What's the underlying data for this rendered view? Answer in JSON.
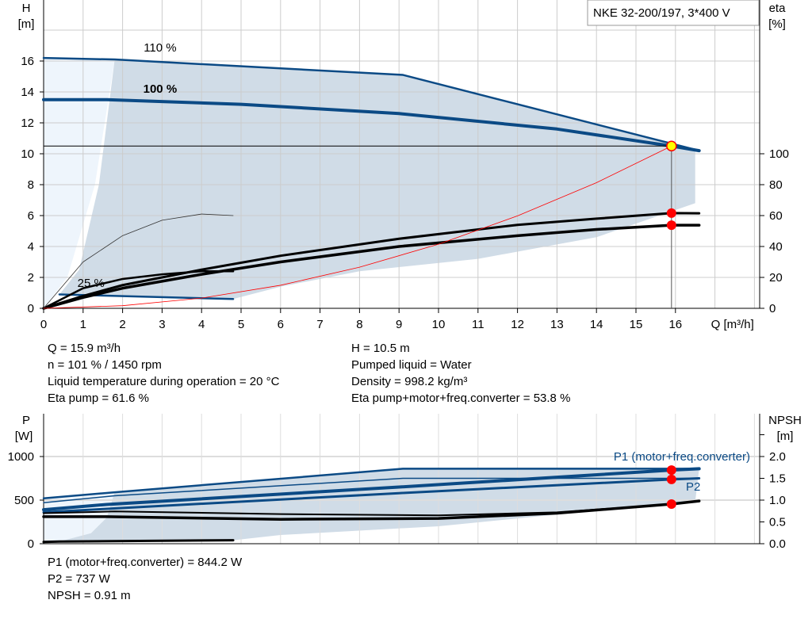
{
  "title": "NKE 32-200/197, 3*400 V",
  "colors": {
    "shade": "#d0dce7",
    "shade_light": "#eef5fc",
    "blue": "#0b4a85",
    "red": "#ff0000",
    "point": "#ffff00"
  },
  "chart_data": [
    {
      "type": "line",
      "title": "NKE 32-200/197, 3*400 V",
      "xlabel": "Q [m³/h]",
      "ylabel": "H\n[m]",
      "ylabel_parts": [
        "H",
        "[m]"
      ],
      "y2label_parts": [
        "eta",
        "[%]"
      ],
      "xlim": [
        0,
        18.1
      ],
      "ylim": [
        0,
        20
      ],
      "y2lim": [
        0,
        200
      ],
      "xticks": [
        0,
        1,
        2,
        3,
        4,
        5,
        6,
        7,
        8,
        9,
        10,
        11,
        12,
        13,
        14,
        15,
        16
      ],
      "yticks": [
        0,
        2,
        4,
        6,
        8,
        10,
        12,
        14,
        16
      ],
      "y2ticks": [
        0,
        20,
        40,
        60,
        80,
        100
      ],
      "grid": true,
      "annotations": [
        "110 %",
        "100 %",
        "25 %"
      ],
      "series": [
        {
          "name": "110 %",
          "axis": "H",
          "x": [
            0,
            1.8,
            9.1,
            16.6
          ],
          "y": [
            16.2,
            16.1,
            15.1,
            10.2
          ]
        },
        {
          "name": "100 %",
          "axis": "H",
          "x": [
            0,
            1.6,
            5,
            9,
            13,
            15.9,
            16.6
          ],
          "y": [
            13.5,
            13.5,
            13.2,
            12.6,
            11.6,
            10.5,
            10.2
          ]
        },
        {
          "name": "25 %",
          "axis": "H",
          "x": [
            0.4,
            4.8
          ],
          "y": [
            0.9,
            0.6
          ]
        },
        {
          "axis": "eta",
          "x": [
            0,
            1,
            2,
            4,
            6,
            9,
            12,
            14,
            15.9,
            16.6
          ],
          "y": [
            0,
            8,
            15,
            25,
            34,
            45,
            54,
            58,
            61.6,
            61.5
          ]
        },
        {
          "axis": "eta",
          "x": [
            0,
            1,
            2,
            4,
            6,
            9,
            12,
            14,
            15.9,
            16.6
          ],
          "y": [
            0,
            7,
            13,
            22,
            30,
            40,
            47,
            51,
            53.8,
            53.8
          ]
        },
        {
          "axis": "eta",
          "x": [
            0,
            1,
            2,
            3,
            4,
            4.8
          ],
          "y": [
            0,
            13,
            19,
            22,
            24,
            24
          ]
        },
        {
          "axis": "eta",
          "x": [
            0,
            1,
            2,
            3,
            4,
            4.8
          ],
          "y": [
            0,
            30,
            47,
            57,
            61,
            60
          ]
        },
        {
          "axis": "H",
          "x": [
            0,
            2,
            4,
            6,
            8,
            10,
            12,
            14,
            15.9
          ],
          "y": [
            0,
            0.17,
            0.66,
            1.49,
            2.66,
            4.15,
            5.98,
            8.13,
            10.5
          ]
        }
      ],
      "operating_point": {
        "Q": 15.9,
        "H": 10.5,
        "eta_pump": 61.6,
        "eta_total": 53.8
      }
    },
    {
      "type": "line",
      "ylabel_parts": [
        "P",
        "[W]"
      ],
      "y2label_parts": [
        "NPSH",
        "[m]"
      ],
      "xlim": [
        0,
        18.1
      ],
      "ylim": [
        0,
        1450
      ],
      "y2lim": [
        0,
        2.9
      ],
      "yticks": [
        0,
        500,
        1000
      ],
      "y2ticks": [
        "0.0",
        "0.5",
        "1.0",
        "1.5",
        "2.0"
      ],
      "grid": true,
      "labels": [
        "P1 (motor+freq.converter)",
        "P2"
      ],
      "series": [
        {
          "axis": "P",
          "x": [
            0,
            1.8,
            9.1,
            16.6
          ],
          "y": [
            520,
            590,
            860,
            860
          ]
        },
        {
          "name": "P1 (motor+freq.converter)",
          "axis": "P",
          "x": [
            0,
            1.6,
            9,
            15.9,
            16.6
          ],
          "y": [
            390,
            450,
            650,
            844,
            860
          ]
        },
        {
          "axis": "P",
          "x": [
            0,
            1.8,
            9.1,
            16.6
          ],
          "y": [
            470,
            550,
            750,
            750
          ]
        },
        {
          "name": "P2",
          "axis": "P",
          "x": [
            0,
            1.6,
            9,
            15.9,
            16.6
          ],
          "y": [
            360,
            400,
            580,
            737,
            750
          ]
        },
        {
          "axis": "NPSH",
          "x": [
            0,
            1.8,
            6,
            10,
            13,
            15.9,
            16.6
          ],
          "y": [
            0.7,
            0.74,
            0.68,
            0.65,
            0.72,
            0.91,
            0.98
          ]
        },
        {
          "axis": "NPSH",
          "x": [
            0,
            1.6,
            6,
            10,
            13,
            15.9,
            16.6
          ],
          "y": [
            0.62,
            0.62,
            0.56,
            0.58,
            0.7,
            0.91,
            0.98
          ]
        },
        {
          "axis": "P",
          "x": [
            0,
            0.4,
            4.8
          ],
          "y": [
            20,
            25,
            40
          ]
        }
      ],
      "operating_point": {
        "P1": 844.2,
        "P2": 737,
        "NPSH": 0.91
      }
    }
  ],
  "info_left": [
    "Q = 15.9 m³/h",
    "n = 101 % / 1450 rpm",
    "Liquid temperature during operation = 20 °C",
    "Eta pump = 61.6 %"
  ],
  "info_right": [
    "H = 10.5 m",
    "Pumped liquid = Water",
    "Density = 998.2 kg/m³",
    "Eta pump+motor+freq.converter = 53.8 %"
  ],
  "info_bottom": [
    "P1 (motor+freq.converter) = 844.2 W",
    "P2 = 737 W",
    "NPSH = 0.91 m"
  ]
}
